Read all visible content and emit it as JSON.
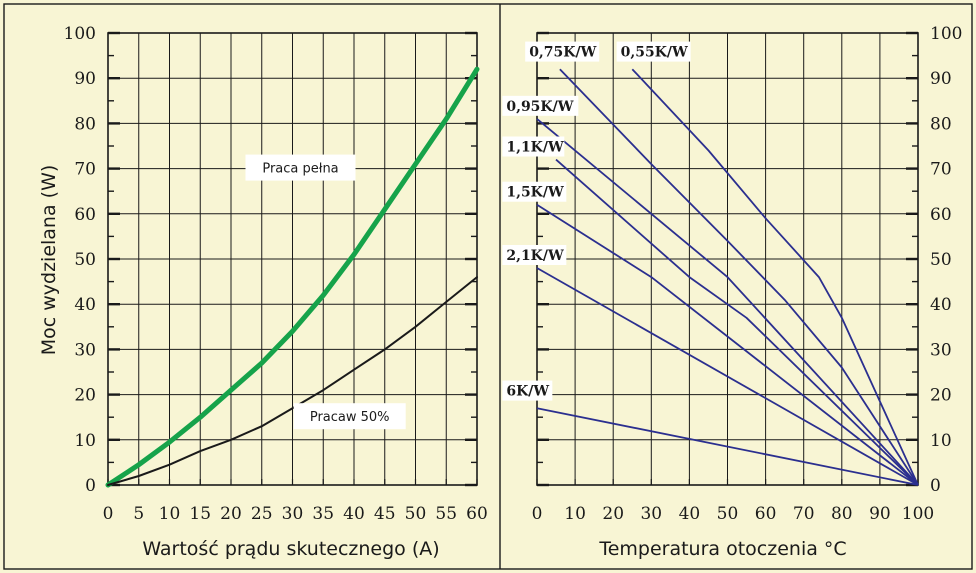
{
  "chart_data": [
    {
      "type": "line",
      "xlabel": "Wartość prądu skutecznego (A)",
      "ylabel": "Moc wydzielana (W)",
      "xlim": [
        0,
        60
      ],
      "ylim": [
        0,
        100
      ],
      "xticks": [
        "0",
        "5",
        "10",
        "15",
        "20",
        "25",
        "30",
        "35",
        "40",
        "45",
        "50",
        "55",
        "60"
      ],
      "yticks": [
        "0",
        "10",
        "20",
        "30",
        "40",
        "50",
        "60",
        "70",
        "80",
        "90",
        "100"
      ],
      "grid": true,
      "series": [
        {
          "name": "Praca pełna",
          "color": "#16a34a",
          "x": [
            0,
            5,
            10,
            15,
            20,
            25,
            30,
            35,
            40,
            45,
            50,
            55,
            60
          ],
          "y": [
            0,
            4.5,
            9.5,
            15,
            21,
            27,
            34,
            42,
            51,
            61,
            71,
            81,
            92
          ]
        },
        {
          "name": "Pracaw 50%",
          "color": "#1a1a1a",
          "x": [
            0,
            5,
            10,
            15,
            20,
            25,
            30,
            35,
            40,
            45,
            50,
            55,
            60
          ],
          "y": [
            0,
            2,
            4.5,
            7.5,
            10,
            13,
            17,
            21,
            25.5,
            30,
            35,
            40.5,
            46
          ]
        }
      ]
    },
    {
      "type": "line",
      "xlabel": "Temperatura otoczenia °C",
      "xlim": [
        0,
        100
      ],
      "ylim": [
        0,
        100
      ],
      "xticks": [
        "0",
        "10",
        "20",
        "30",
        "40",
        "50",
        "60",
        "70",
        "80",
        "90",
        "100"
      ],
      "yticks": [
        "0",
        "10",
        "20",
        "30",
        "40",
        "50",
        "60",
        "70",
        "80",
        "90",
        "100"
      ],
      "grid": true,
      "color": "#2b2f8f",
      "series": [
        {
          "name": "0,75K/W",
          "x": [
            6,
            30,
            50,
            65,
            80,
            100
          ],
          "y": [
            92,
            71,
            54,
            41,
            26,
            0
          ]
        },
        {
          "name": "0,55K/W",
          "x": [
            25,
            45,
            60,
            74,
            80,
            100
          ],
          "y": [
            92,
            74,
            59,
            46,
            37,
            0
          ]
        },
        {
          "name": "0,95K/W",
          "x": [
            0,
            50,
            100
          ],
          "y": [
            81,
            46,
            0
          ]
        },
        {
          "name": "1,1K/W",
          "x": [
            5,
            40,
            55,
            100
          ],
          "y": [
            72,
            46,
            37,
            0
          ]
        },
        {
          "name": "1,5K/W",
          "x": [
            0,
            30,
            100
          ],
          "y": [
            62,
            46,
            0
          ]
        },
        {
          "name": "2,1K/W",
          "x": [
            0,
            100
          ],
          "y": [
            48,
            0
          ]
        },
        {
          "name": "6K/W",
          "x": [
            0,
            100
          ],
          "y": [
            17,
            0
          ]
        }
      ]
    }
  ]
}
